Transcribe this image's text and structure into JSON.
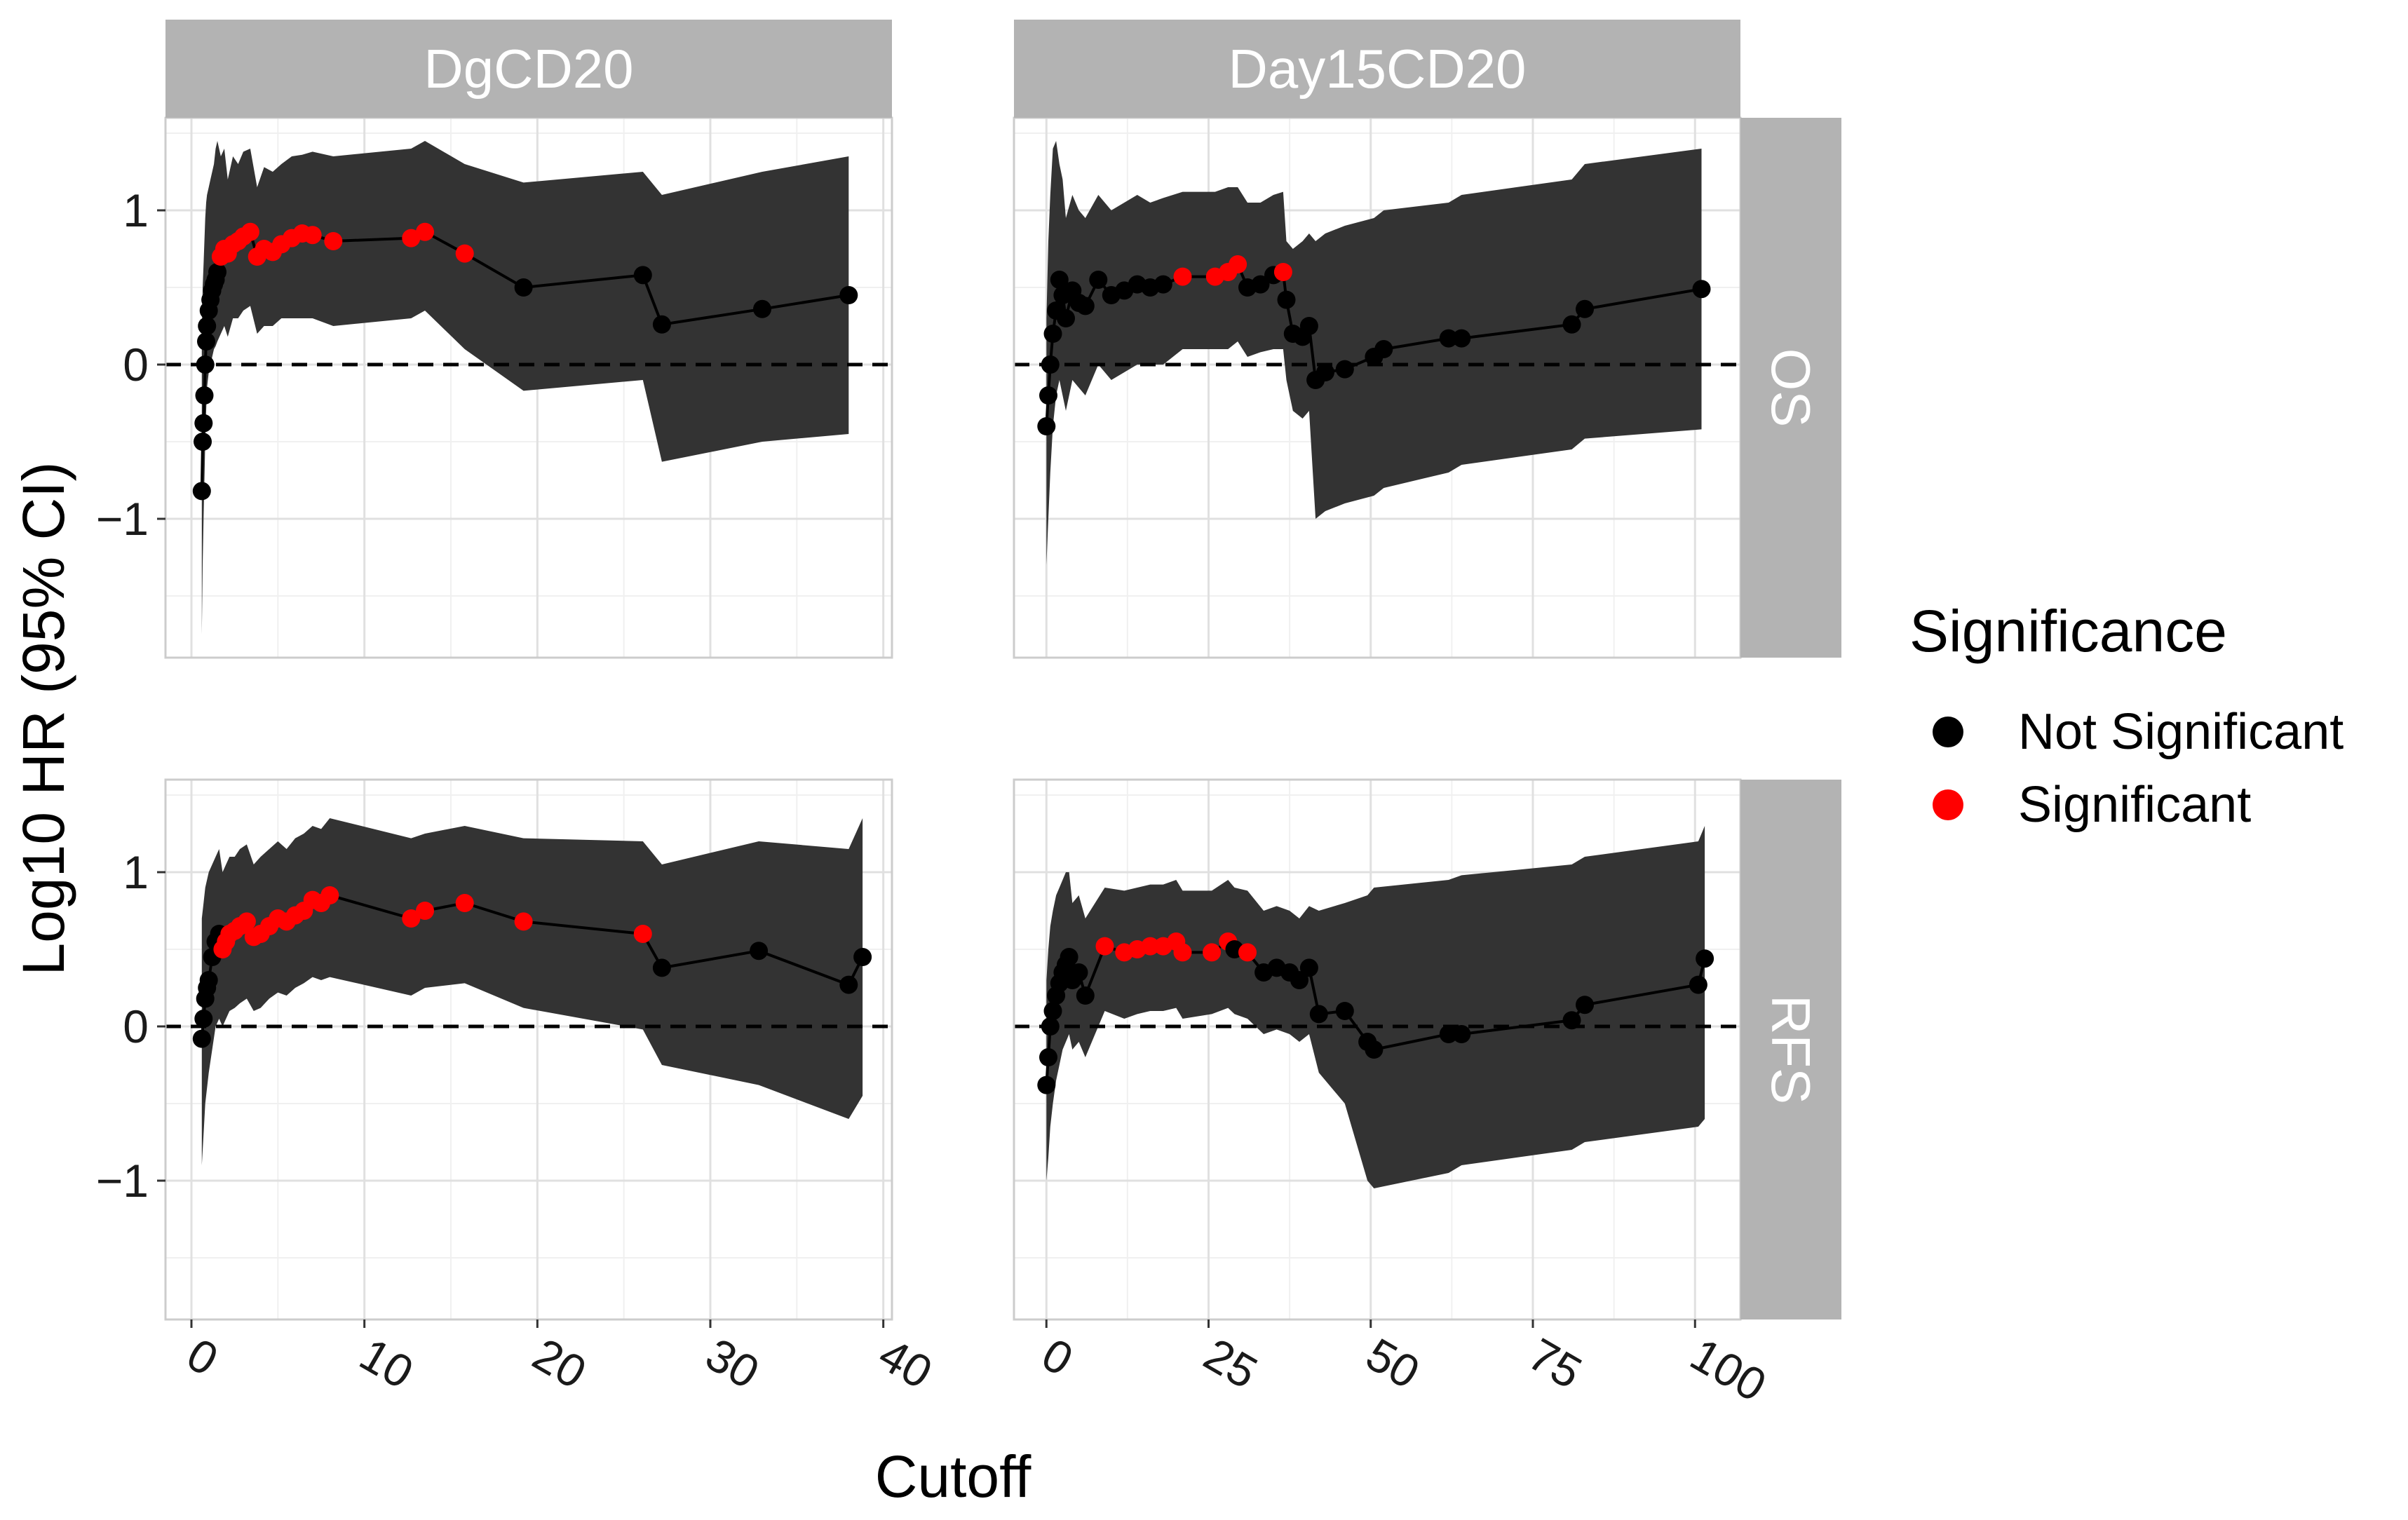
{
  "chart_data": {
    "type": "line",
    "layout": "facet-grid",
    "xlabel": "Cutoff",
    "ylabel": "Log10 HR (95% CI)",
    "y_ticks": [
      1,
      0,
      -1
    ],
    "y_tick_labels": [
      "1",
      "0",
      "−1"
    ],
    "ylim": [
      -1.9,
      1.6
    ],
    "reference_line": 0,
    "columns": [
      {
        "label": "DgCD20",
        "xlim": [
          -1.5,
          40.5
        ],
        "x_ticks": [
          0,
          10,
          20,
          30,
          40
        ],
        "x_tick_labels": [
          "0",
          "10",
          "20",
          "30",
          "40"
        ]
      },
      {
        "label": "Day15CD20",
        "xlim": [
          -5,
          107
        ],
        "x_ticks": [
          0,
          25,
          50,
          75,
          100
        ],
        "x_tick_labels": [
          "0",
          "25",
          "50",
          "75",
          "100"
        ]
      }
    ],
    "rows": [
      {
        "label": "OS"
      },
      {
        "label": "RFS"
      }
    ],
    "legend": {
      "title": "Significance",
      "entries": [
        {
          "label": "Not Significant",
          "color": "#000000"
        },
        {
          "label": "Significant",
          "color": "#ff0000"
        }
      ],
      "position": "right"
    },
    "colors": {
      "ribbon": "#333333",
      "line": "#000000",
      "not_significant": "#000000",
      "significant": "#ff0000",
      "strip": "#b3b3b3",
      "grid_major": "#e0e0e0",
      "grid_minor": "#f0f0f0"
    },
    "panels": [
      {
        "col": 0,
        "row": 0,
        "x": [
          0.6,
          0.65,
          0.7,
          0.75,
          0.8,
          0.85,
          0.9,
          1.0,
          1.1,
          1.2,
          1.3,
          1.4,
          1.5,
          1.7,
          1.9,
          2.1,
          2.4,
          2.7,
          3.0,
          3.4,
          3.8,
          4.2,
          4.7,
          5.2,
          5.8,
          6.4,
          7.0,
          8.2,
          12.7,
          13.5,
          15.8,
          19.2,
          26.1,
          27.2,
          33.0,
          38.0
        ],
        "y": [
          -0.82,
          -0.5,
          -0.38,
          -0.2,
          0.0,
          0.15,
          0.25,
          0.35,
          0.42,
          0.48,
          0.52,
          0.55,
          0.6,
          0.7,
          0.75,
          0.72,
          0.78,
          0.8,
          0.83,
          0.86,
          0.7,
          0.75,
          0.73,
          0.78,
          0.82,
          0.85,
          0.84,
          0.8,
          0.82,
          0.86,
          0.72,
          0.5,
          0.58,
          0.26,
          0.36,
          0.45
        ],
        "lower": [
          -1.75,
          -1.3,
          -1.0,
          -0.75,
          -0.5,
          -0.3,
          -0.15,
          -0.05,
          0.0,
          0.05,
          0.1,
          0.12,
          0.15,
          0.2,
          0.25,
          0.18,
          0.3,
          0.3,
          0.35,
          0.38,
          0.2,
          0.25,
          0.25,
          0.3,
          0.3,
          0.3,
          0.3,
          0.25,
          0.3,
          0.35,
          0.1,
          -0.17,
          -0.1,
          -0.63,
          -0.5,
          -0.45
        ],
        "upper": [
          0.2,
          0.5,
          0.65,
          0.8,
          0.95,
          1.05,
          1.1,
          1.15,
          1.2,
          1.25,
          1.3,
          1.4,
          1.45,
          1.35,
          1.4,
          1.2,
          1.35,
          1.3,
          1.38,
          1.4,
          1.15,
          1.28,
          1.25,
          1.3,
          1.35,
          1.36,
          1.38,
          1.35,
          1.4,
          1.45,
          1.3,
          1.18,
          1.25,
          1.1,
          1.25,
          1.35
        ],
        "significant": [
          false,
          false,
          false,
          false,
          false,
          false,
          false,
          false,
          false,
          false,
          false,
          false,
          false,
          true,
          true,
          true,
          true,
          true,
          true,
          true,
          true,
          true,
          true,
          true,
          true,
          true,
          true,
          true,
          true,
          true,
          true,
          false,
          false,
          false,
          false,
          false
        ]
      },
      {
        "col": 1,
        "row": 0,
        "x": [
          0.0,
          0.3,
          0.6,
          1.0,
          1.5,
          2.0,
          2.5,
          3.0,
          4.0,
          5.0,
          6.0,
          8.0,
          10.0,
          12.0,
          14.0,
          16.0,
          18.0,
          21.0,
          26.0,
          28.0,
          29.5,
          31.0,
          33.0,
          35.0,
          36.5,
          37.0,
          38.0,
          39.5,
          40.5,
          41.5,
          43.0,
          46.0,
          50.5,
          52.0,
          62.0,
          64.0,
          81.0,
          83.0,
          101.0
        ],
        "y": [
          -0.4,
          -0.2,
          0.0,
          0.2,
          0.35,
          0.55,
          0.45,
          0.3,
          0.48,
          0.4,
          0.38,
          0.55,
          0.45,
          0.48,
          0.52,
          0.5,
          0.52,
          0.57,
          0.57,
          0.6,
          0.65,
          0.5,
          0.52,
          0.58,
          0.6,
          0.42,
          0.2,
          0.18,
          0.25,
          -0.1,
          -0.05,
          -0.03,
          0.05,
          0.1,
          0.17,
          0.17,
          0.26,
          0.36,
          0.49
        ],
        "lower": [
          -1.3,
          -1.0,
          -0.7,
          -0.4,
          -0.2,
          -0.1,
          -0.2,
          -0.3,
          -0.1,
          -0.15,
          -0.2,
          0.0,
          -0.1,
          -0.05,
          0.0,
          0.0,
          0.0,
          0.1,
          0.1,
          0.1,
          0.15,
          0.05,
          0.08,
          0.1,
          0.1,
          -0.1,
          -0.3,
          -0.35,
          -0.3,
          -1.0,
          -0.95,
          -0.9,
          -0.85,
          -0.8,
          -0.7,
          -0.65,
          -0.55,
          -0.48,
          -0.42
        ],
        "upper": [
          0.3,
          0.8,
          1.1,
          1.4,
          1.45,
          1.3,
          1.2,
          0.95,
          1.1,
          1.0,
          0.95,
          1.1,
          1.0,
          1.05,
          1.1,
          1.05,
          1.08,
          1.12,
          1.12,
          1.15,
          1.15,
          1.05,
          1.05,
          1.1,
          1.12,
          0.8,
          0.75,
          0.8,
          0.85,
          0.8,
          0.85,
          0.9,
          0.95,
          1.0,
          1.05,
          1.1,
          1.2,
          1.3,
          1.4
        ],
        "significant": [
          false,
          false,
          false,
          false,
          false,
          false,
          false,
          false,
          false,
          false,
          false,
          false,
          false,
          false,
          false,
          false,
          false,
          true,
          true,
          true,
          true,
          false,
          false,
          false,
          true,
          false,
          false,
          false,
          false,
          false,
          false,
          false,
          false,
          false,
          false,
          false,
          false,
          false,
          false
        ]
      },
      {
        "col": 0,
        "row": 1,
        "x": [
          0.6,
          0.7,
          0.8,
          0.9,
          1.0,
          1.2,
          1.4,
          1.6,
          1.8,
          2.0,
          2.2,
          2.5,
          2.8,
          3.2,
          3.6,
          4.0,
          4.5,
          5.0,
          5.5,
          6.0,
          6.5,
          7.0,
          7.5,
          8.0,
          12.7,
          13.5,
          15.8,
          19.2,
          26.1,
          27.2,
          32.8,
          38.0,
          38.8
        ],
        "y": [
          -0.08,
          0.05,
          0.18,
          0.25,
          0.3,
          0.45,
          0.55,
          0.6,
          0.5,
          0.55,
          0.6,
          0.62,
          0.65,
          0.68,
          0.58,
          0.6,
          0.65,
          0.7,
          0.68,
          0.72,
          0.75,
          0.82,
          0.8,
          0.85,
          0.7,
          0.75,
          0.8,
          0.68,
          0.6,
          0.38,
          0.49,
          0.27,
          0.45
        ],
        "lower": [
          -0.9,
          -0.7,
          -0.5,
          -0.4,
          -0.3,
          -0.15,
          0.0,
          0.05,
          0.0,
          0.05,
          0.1,
          0.12,
          0.15,
          0.18,
          0.1,
          0.12,
          0.18,
          0.22,
          0.2,
          0.25,
          0.28,
          0.32,
          0.3,
          0.32,
          0.2,
          0.25,
          0.28,
          0.12,
          -0.02,
          -0.25,
          -0.38,
          -0.6,
          -0.45
        ],
        "upper": [
          0.7,
          0.8,
          0.9,
          0.95,
          1.0,
          1.05,
          1.1,
          1.15,
          1.0,
          1.05,
          1.1,
          1.1,
          1.15,
          1.18,
          1.05,
          1.1,
          1.15,
          1.2,
          1.15,
          1.22,
          1.25,
          1.3,
          1.28,
          1.35,
          1.22,
          1.25,
          1.3,
          1.22,
          1.2,
          1.05,
          1.2,
          1.15,
          1.35
        ],
        "significant": [
          false,
          false,
          false,
          false,
          false,
          false,
          false,
          false,
          true,
          true,
          true,
          true,
          true,
          true,
          true,
          true,
          true,
          true,
          true,
          true,
          true,
          true,
          true,
          true,
          true,
          true,
          true,
          true,
          true,
          false,
          false,
          false,
          false
        ]
      },
      {
        "col": 1,
        "row": 1,
        "x": [
          0.0,
          0.3,
          0.6,
          1.0,
          1.5,
          2.0,
          2.5,
          3.0,
          3.5,
          4.0,
          5.0,
          6.0,
          9.0,
          12.0,
          14.0,
          16.0,
          18.0,
          20.0,
          21.0,
          25.5,
          28.0,
          29.0,
          31.0,
          33.5,
          35.5,
          37.5,
          39.0,
          40.5,
          42.0,
          46.0,
          49.5,
          50.5,
          62.0,
          64.0,
          81.0,
          83.0,
          100.5,
          101.5
        ],
        "y": [
          -0.38,
          -0.2,
          0.0,
          0.1,
          0.2,
          0.28,
          0.35,
          0.4,
          0.45,
          0.3,
          0.35,
          0.2,
          0.52,
          0.48,
          0.5,
          0.52,
          0.52,
          0.55,
          0.48,
          0.48,
          0.55,
          0.5,
          0.48,
          0.35,
          0.38,
          0.35,
          0.3,
          0.38,
          0.08,
          0.1,
          -0.1,
          -0.15,
          -0.05,
          -0.05,
          0.04,
          0.14,
          0.27,
          0.44
        ],
        "lower": [
          -1.0,
          -0.85,
          -0.65,
          -0.5,
          -0.35,
          -0.25,
          -0.15,
          -0.1,
          -0.05,
          -0.15,
          -0.1,
          -0.2,
          0.1,
          0.05,
          0.08,
          0.1,
          0.1,
          0.12,
          0.05,
          0.08,
          0.12,
          0.08,
          0.05,
          -0.05,
          -0.02,
          -0.05,
          -0.1,
          -0.05,
          -0.3,
          -0.5,
          -1.0,
          -1.05,
          -0.95,
          -0.9,
          -0.8,
          -0.75,
          -0.65,
          -0.6
        ],
        "upper": [
          0.3,
          0.5,
          0.65,
          0.75,
          0.85,
          0.9,
          0.95,
          1.0,
          1.0,
          0.8,
          0.85,
          0.7,
          0.9,
          0.88,
          0.9,
          0.92,
          0.92,
          0.95,
          0.88,
          0.88,
          0.95,
          0.9,
          0.88,
          0.75,
          0.78,
          0.75,
          0.7,
          0.78,
          0.75,
          0.8,
          0.85,
          0.9,
          0.95,
          0.98,
          1.05,
          1.1,
          1.2,
          1.3
        ],
        "significant": [
          false,
          false,
          false,
          false,
          false,
          false,
          false,
          false,
          false,
          false,
          false,
          false,
          true,
          true,
          true,
          true,
          true,
          true,
          true,
          true,
          true,
          false,
          true,
          false,
          false,
          false,
          false,
          false,
          false,
          false,
          false,
          false,
          false,
          false,
          false,
          false,
          false,
          false
        ]
      }
    ]
  }
}
